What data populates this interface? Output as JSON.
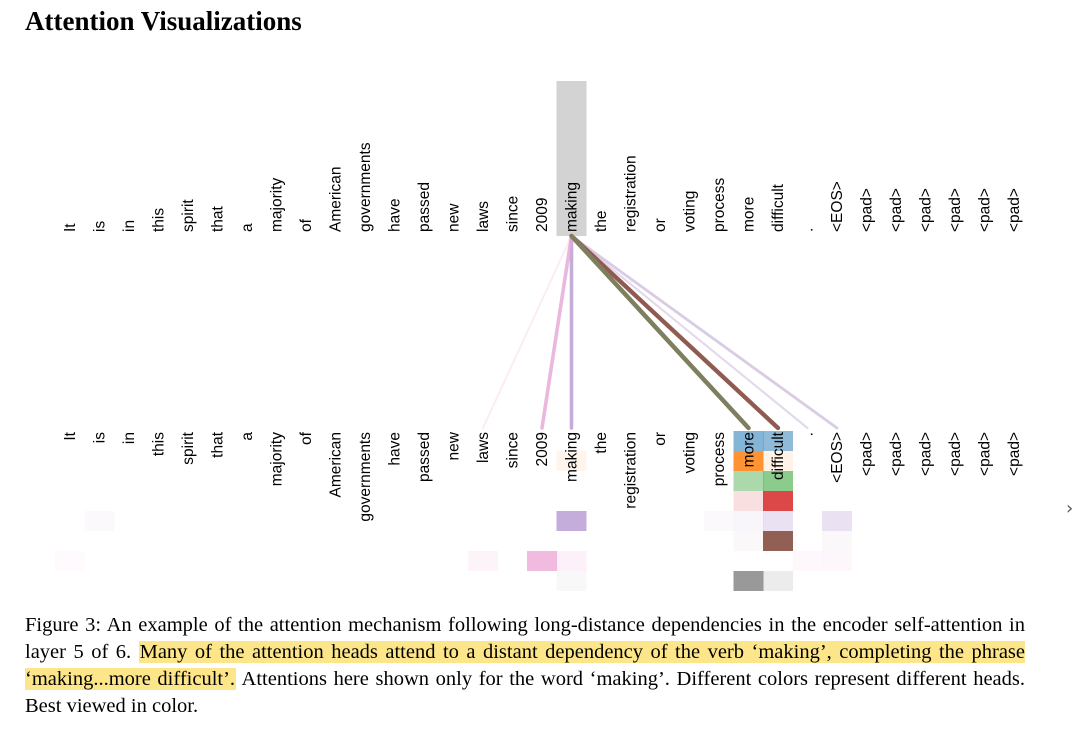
{
  "heading": "Attention Visualizations",
  "tokens": [
    "It",
    "is",
    "in",
    "this",
    "spirit",
    "that",
    "a",
    "majority",
    "of",
    "American",
    "governments",
    "have",
    "passed",
    "new",
    "laws",
    "since",
    "2009",
    "making",
    "the",
    "registration",
    "or",
    "voting",
    "process",
    "more",
    "difficult",
    ".",
    "<EOS>",
    "<pad>",
    "<pad>",
    "<pad>",
    "<pad>",
    "<pad>",
    "<pad>"
  ],
  "query_token": "making",
  "heads": [
    {
      "color": "#1f77b4"
    },
    {
      "color": "#ff7f0e"
    },
    {
      "color": "#2ca02c"
    },
    {
      "color": "#d62728"
    },
    {
      "color": "#9467bd"
    },
    {
      "color": "#8c564b"
    },
    {
      "color": "#e377c2"
    },
    {
      "color": "#7f7f7f"
    }
  ],
  "attention_lines": [
    {
      "target": 23,
      "color": "#7f7f5f",
      "weight": 1.0
    },
    {
      "target": 24,
      "color": "#8c564b",
      "weight": 0.95
    },
    {
      "target": 26,
      "color": "#c5b0d5",
      "weight": 0.45
    },
    {
      "target": 25,
      "color": "#c5b0d5",
      "weight": 0.2
    },
    {
      "target": 17,
      "color": "#b799d0",
      "weight": 0.7
    },
    {
      "target": 16,
      "color": "#e6a5d6",
      "weight": 0.7
    },
    {
      "target": 14,
      "color": "#f7d9e8",
      "weight": 0.2
    },
    {
      "target": 24,
      "color": "#f0c0c0",
      "weight": 0.15
    }
  ],
  "cells": [
    {
      "head": 0,
      "token": 23,
      "color": "#1f77b4",
      "opacity": 0.55
    },
    {
      "head": 0,
      "token": 24,
      "color": "#1f77b4",
      "opacity": 0.5
    },
    {
      "head": 1,
      "token": 17,
      "color": "#ff7f0e",
      "opacity": 0.08
    },
    {
      "head": 1,
      "token": 23,
      "color": "#ff7f0e",
      "opacity": 0.85
    },
    {
      "head": 1,
      "token": 24,
      "color": "#ff7f0e",
      "opacity": 0.1
    },
    {
      "head": 2,
      "token": 23,
      "color": "#2ca02c",
      "opacity": 0.4
    },
    {
      "head": 2,
      "token": 24,
      "color": "#2ca02c",
      "opacity": 0.55
    },
    {
      "head": 3,
      "token": 23,
      "color": "#d62728",
      "opacity": 0.15
    },
    {
      "head": 3,
      "token": 24,
      "color": "#d62728",
      "opacity": 0.85
    },
    {
      "head": 4,
      "token": 1,
      "color": "#9467bd",
      "opacity": 0.04
    },
    {
      "head": 4,
      "token": 17,
      "color": "#9467bd",
      "opacity": 0.55
    },
    {
      "head": 4,
      "token": 22,
      "color": "#9467bd",
      "opacity": 0.04
    },
    {
      "head": 4,
      "token": 23,
      "color": "#9467bd",
      "opacity": 0.06
    },
    {
      "head": 4,
      "token": 24,
      "color": "#9467bd",
      "opacity": 0.2
    },
    {
      "head": 4,
      "token": 26,
      "color": "#9467bd",
      "opacity": 0.2
    },
    {
      "head": 5,
      "token": 23,
      "color": "#8c564b",
      "opacity": 0.04
    },
    {
      "head": 5,
      "token": 24,
      "color": "#8c564b",
      "opacity": 0.95
    },
    {
      "head": 5,
      "token": 26,
      "color": "#8c564b",
      "opacity": 0.04
    },
    {
      "head": 6,
      "token": 0,
      "color": "#e377c2",
      "opacity": 0.04
    },
    {
      "head": 6,
      "token": 14,
      "color": "#e377c2",
      "opacity": 0.08
    },
    {
      "head": 6,
      "token": 16,
      "color": "#e377c2",
      "opacity": 0.5
    },
    {
      "head": 6,
      "token": 17,
      "color": "#e377c2",
      "opacity": 0.1
    },
    {
      "head": 6,
      "token": 25,
      "color": "#e377c2",
      "opacity": 0.05
    },
    {
      "head": 6,
      "token": 26,
      "color": "#e377c2",
      "opacity": 0.06
    },
    {
      "head": 7,
      "token": 17,
      "color": "#7f7f7f",
      "opacity": 0.05
    },
    {
      "head": 7,
      "token": 23,
      "color": "#7f7f7f",
      "opacity": 0.8
    },
    {
      "head": 7,
      "token": 24,
      "color": "#7f7f7f",
      "opacity": 0.15
    }
  ],
  "caption": {
    "prefix": "Figure 3:  An example of the attention mechanism following long-distance dependencies in the encoder self-attention in layer 5 of 6. ",
    "highlight": "Many of the attention heads attend to a distant dependency of the verb ‘making’, completing the phrase ‘making...more difficult’.",
    "suffix": " Attentions here shown only for the word ‘making’. Different colors represent different heads. Best viewed in color."
  },
  "nav_arrow": "›"
}
